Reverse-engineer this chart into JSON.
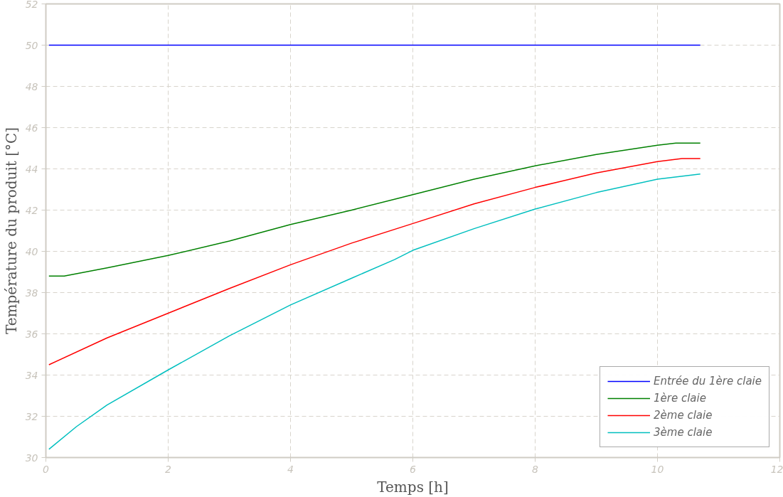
{
  "chart_data": {
    "type": "line",
    "xlabel": "Temps [h]",
    "ylabel": "Température du produit [°C]",
    "xlim": [
      0,
      12
    ],
    "xticks": [
      0,
      2,
      4,
      6,
      8,
      10,
      12
    ],
    "ylim": [
      30,
      52
    ],
    "yticks": [
      30,
      32,
      34,
      36,
      38,
      40,
      42,
      44,
      46,
      48,
      50,
      52
    ],
    "grid": true,
    "legend": "bottom right",
    "line_style": "solid",
    "marker": "none",
    "series": [
      {
        "name": "Entrée du 1ère claie",
        "color": "#0000ff",
        "x": [
          0.05,
          10.7
        ],
        "values": [
          50,
          50
        ]
      },
      {
        "name": "1ère claie",
        "color": "#008000",
        "x": [
          0.05,
          0.3,
          1,
          2,
          3,
          4,
          5,
          6,
          7,
          8,
          9,
          10,
          10.3,
          10.7
        ],
        "values": [
          38.8,
          38.8,
          39.2,
          39.8,
          40.5,
          41.3,
          42.0,
          42.75,
          43.5,
          44.15,
          44.7,
          45.15,
          45.25,
          45.25
        ]
      },
      {
        "name": "2ème claie",
        "color": "#ff0000",
        "x": [
          0.05,
          1,
          2,
          3,
          4,
          5,
          6,
          7,
          8,
          9,
          10,
          10.4,
          10.7
        ],
        "values": [
          34.5,
          35.8,
          37.0,
          38.2,
          39.35,
          40.4,
          41.35,
          42.3,
          43.1,
          43.8,
          44.35,
          44.5,
          44.5
        ]
      },
      {
        "name": "3ème claie",
        "color": "#00bfbf",
        "x": [
          0.05,
          0.5,
          1,
          2,
          3,
          4,
          5,
          5.7,
          6,
          7,
          8,
          9,
          10,
          10.7
        ],
        "values": [
          30.4,
          31.5,
          32.55,
          34.25,
          35.9,
          37.4,
          38.7,
          39.6,
          40.05,
          41.1,
          42.05,
          42.85,
          43.5,
          43.75
        ]
      }
    ]
  }
}
